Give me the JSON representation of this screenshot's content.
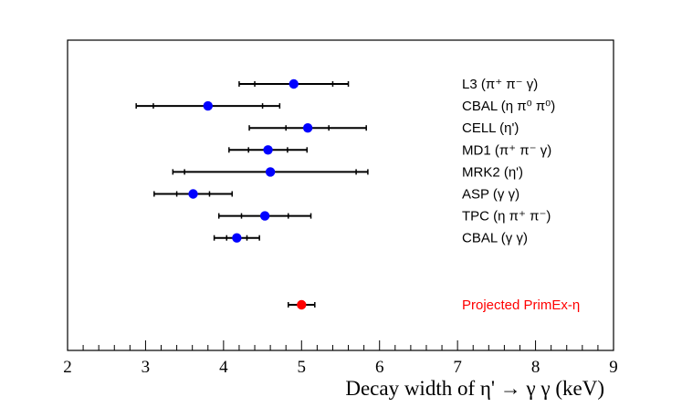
{
  "chart_data": {
    "type": "scatter",
    "title": "",
    "xlabel": "Decay width of η' → γ γ   (keV)",
    "ylabel": "",
    "xlim": [
      2,
      9
    ],
    "x_ticks": [
      "2",
      "3",
      "4",
      "5",
      "6",
      "7",
      "8",
      "9"
    ],
    "grid": false,
    "marker_color": "#0000ff",
    "highlight_color": "#ff0000",
    "points": [
      {
        "label": "L3   (π⁺ π⁻ γ)",
        "value": 4.9,
        "stat_lo": 4.4,
        "stat_hi": 5.4,
        "tot_lo": 4.2,
        "tot_hi": 5.6,
        "color": "#0000ff"
      },
      {
        "label": "CBAL  (η π⁰ π⁰)",
        "value": 3.8,
        "stat_lo": 3.1,
        "stat_hi": 4.5,
        "tot_lo": 2.88,
        "tot_hi": 4.72,
        "color": "#0000ff"
      },
      {
        "label": "CELL  (η')",
        "value": 5.08,
        "stat_lo": 4.8,
        "stat_hi": 5.35,
        "tot_lo": 4.33,
        "tot_hi": 5.83,
        "color": "#0000ff"
      },
      {
        "label": "MD1   (π⁺ π⁻ γ)",
        "value": 4.57,
        "stat_lo": 4.32,
        "stat_hi": 4.82,
        "tot_lo": 4.07,
        "tot_hi": 5.07,
        "color": "#0000ff"
      },
      {
        "label": "MRK2  (η')",
        "value": 4.6,
        "stat_lo": 3.5,
        "stat_hi": 5.7,
        "tot_lo": 3.35,
        "tot_hi": 5.85,
        "color": "#0000ff"
      },
      {
        "label": "ASP   (γ γ)",
        "value": 3.61,
        "stat_lo": 3.4,
        "stat_hi": 3.82,
        "tot_lo": 3.11,
        "tot_hi": 4.11,
        "color": "#0000ff"
      },
      {
        "label": "TPC   (η π⁺ π⁻)",
        "value": 4.53,
        "stat_lo": 4.23,
        "stat_hi": 4.83,
        "tot_lo": 3.94,
        "tot_hi": 5.12,
        "color": "#0000ff"
      },
      {
        "label": "CBAL  (γ γ)",
        "value": 4.17,
        "stat_lo": 4.04,
        "stat_hi": 4.3,
        "tot_lo": 3.88,
        "tot_hi": 4.46,
        "color": "#0000ff"
      }
    ],
    "projected": {
      "label": "Projected PrimEx-η",
      "value": 5.0,
      "tot_lo": 4.83,
      "tot_hi": 5.17,
      "color": "#ff0000"
    }
  }
}
